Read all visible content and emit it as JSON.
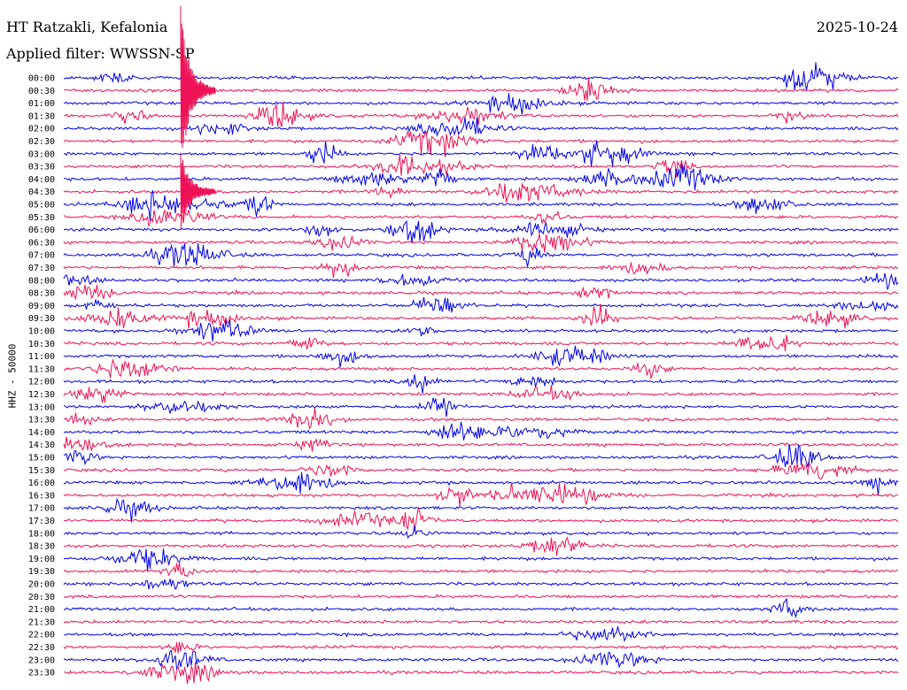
{
  "header": {
    "station": "HT Ratzakli, Kefalonia",
    "filter": "Applied filter: WWSSN-SP",
    "date": "2025-10-24"
  },
  "chart_data": {
    "type": "line",
    "title": "HT Ratzakli, Kefalonia",
    "subtitle": "Applied filter: WWSSN-SP",
    "date": "2025-10-24",
    "ylabel": "HHZ - 50000",
    "row_interval_minutes": 30,
    "colors": [
      "#0000ee",
      "#ee1155"
    ],
    "color_order": "alternating, starting with blue at 00:00",
    "rows": [
      {
        "label": "00:00",
        "events": [
          0.06,
          0.89,
          0.91
        ]
      },
      {
        "label": "00:30",
        "events": [
          0.63
        ]
      },
      {
        "label": "01:00",
        "events": [
          0.54
        ]
      },
      {
        "label": "01:30",
        "events": [
          0.08,
          0.26,
          0.48,
          0.87
        ]
      },
      {
        "label": "02:00",
        "events": [
          0.19,
          0.47
        ]
      },
      {
        "label": "02:30",
        "events": [
          0.44
        ]
      },
      {
        "label": "03:00",
        "events": [
          0.31,
          0.57,
          0.65
        ]
      },
      {
        "label": "03:30",
        "events": [
          0.4,
          0.45,
          0.73
        ]
      },
      {
        "label": "04:00",
        "events": [
          0.37,
          0.45,
          0.65,
          0.74
        ]
      },
      {
        "label": "04:30",
        "events": [
          0.39,
          0.53,
          0.58
        ]
      },
      {
        "label": "05:00",
        "events": [
          0.1,
          0.15,
          0.23,
          0.84
        ]
      },
      {
        "label": "05:30",
        "events": [
          0.13,
          0.58
        ]
      },
      {
        "label": "06:00",
        "events": [
          0.31,
          0.42,
          0.58
        ]
      },
      {
        "label": "06:30",
        "events": [
          0.33,
          0.58
        ]
      },
      {
        "label": "07:00",
        "events": [
          0.15,
          0.56
        ]
      },
      {
        "label": "07:30",
        "events": [
          0.33,
          0.69
        ]
      },
      {
        "label": "08:00",
        "events": [
          0.0,
          0.42,
          0.98
        ]
      },
      {
        "label": "08:30",
        "events": [
          0.02,
          0.64
        ]
      },
      {
        "label": "09:00",
        "events": [
          0.04,
          0.45,
          0.97
        ]
      },
      {
        "label": "09:30",
        "events": [
          0.06,
          0.17,
          0.64,
          0.92
        ]
      },
      {
        "label": "10:00",
        "events": [
          0.19,
          0.43
        ]
      },
      {
        "label": "10:30",
        "events": [
          0.29,
          0.84
        ]
      },
      {
        "label": "11:00",
        "events": [
          0.33,
          0.61
        ]
      },
      {
        "label": "11:30",
        "events": [
          0.08,
          0.7
        ]
      },
      {
        "label": "12:00",
        "events": [
          0.43,
          0.57
        ]
      },
      {
        "label": "12:30",
        "events": [
          0.04,
          0.58
        ]
      },
      {
        "label": "13:00",
        "events": [
          0.14,
          0.45
        ]
      },
      {
        "label": "13:30",
        "events": [
          0.02,
          0.3
        ]
      },
      {
        "label": "14:00",
        "events": [
          0.47,
          0.56
        ]
      },
      {
        "label": "14:30",
        "events": [
          0.0,
          0.3
        ]
      },
      {
        "label": "15:00",
        "events": [
          0.02,
          0.88
        ]
      },
      {
        "label": "15:30",
        "events": [
          0.32,
          0.9
        ]
      },
      {
        "label": "16:00",
        "events": [
          0.28,
          0.98
        ]
      },
      {
        "label": "16:30",
        "events": [
          0.47,
          0.54,
          0.6
        ]
      },
      {
        "label": "17:00",
        "events": [
          0.08
        ]
      },
      {
        "label": "17:30",
        "events": [
          0.35,
          0.42
        ]
      },
      {
        "label": "18:00",
        "events": [
          0.42
        ]
      },
      {
        "label": "18:30",
        "events": [
          0.59
        ]
      },
      {
        "label": "19:00",
        "events": [
          0.1
        ]
      },
      {
        "label": "19:30",
        "events": [
          0.14
        ]
      },
      {
        "label": "20:00",
        "events": [
          0.12
        ]
      },
      {
        "label": "20:30",
        "events": []
      },
      {
        "label": "21:00",
        "events": [
          0.87
        ]
      },
      {
        "label": "21:30",
        "events": []
      },
      {
        "label": "22:00",
        "events": [
          0.65
        ]
      },
      {
        "label": "22:30",
        "events": [
          0.14
        ]
      },
      {
        "label": "23:00",
        "events": [
          0.14,
          0.66
        ]
      },
      {
        "label": "23:30",
        "events": [
          0.14
        ]
      }
    ],
    "major_events": [
      {
        "time": "00:30",
        "position": 0.14,
        "note": "large event, trace clipped above 00:00 row"
      },
      {
        "time": "04:30",
        "position": 0.14,
        "note": "large event"
      }
    ]
  }
}
